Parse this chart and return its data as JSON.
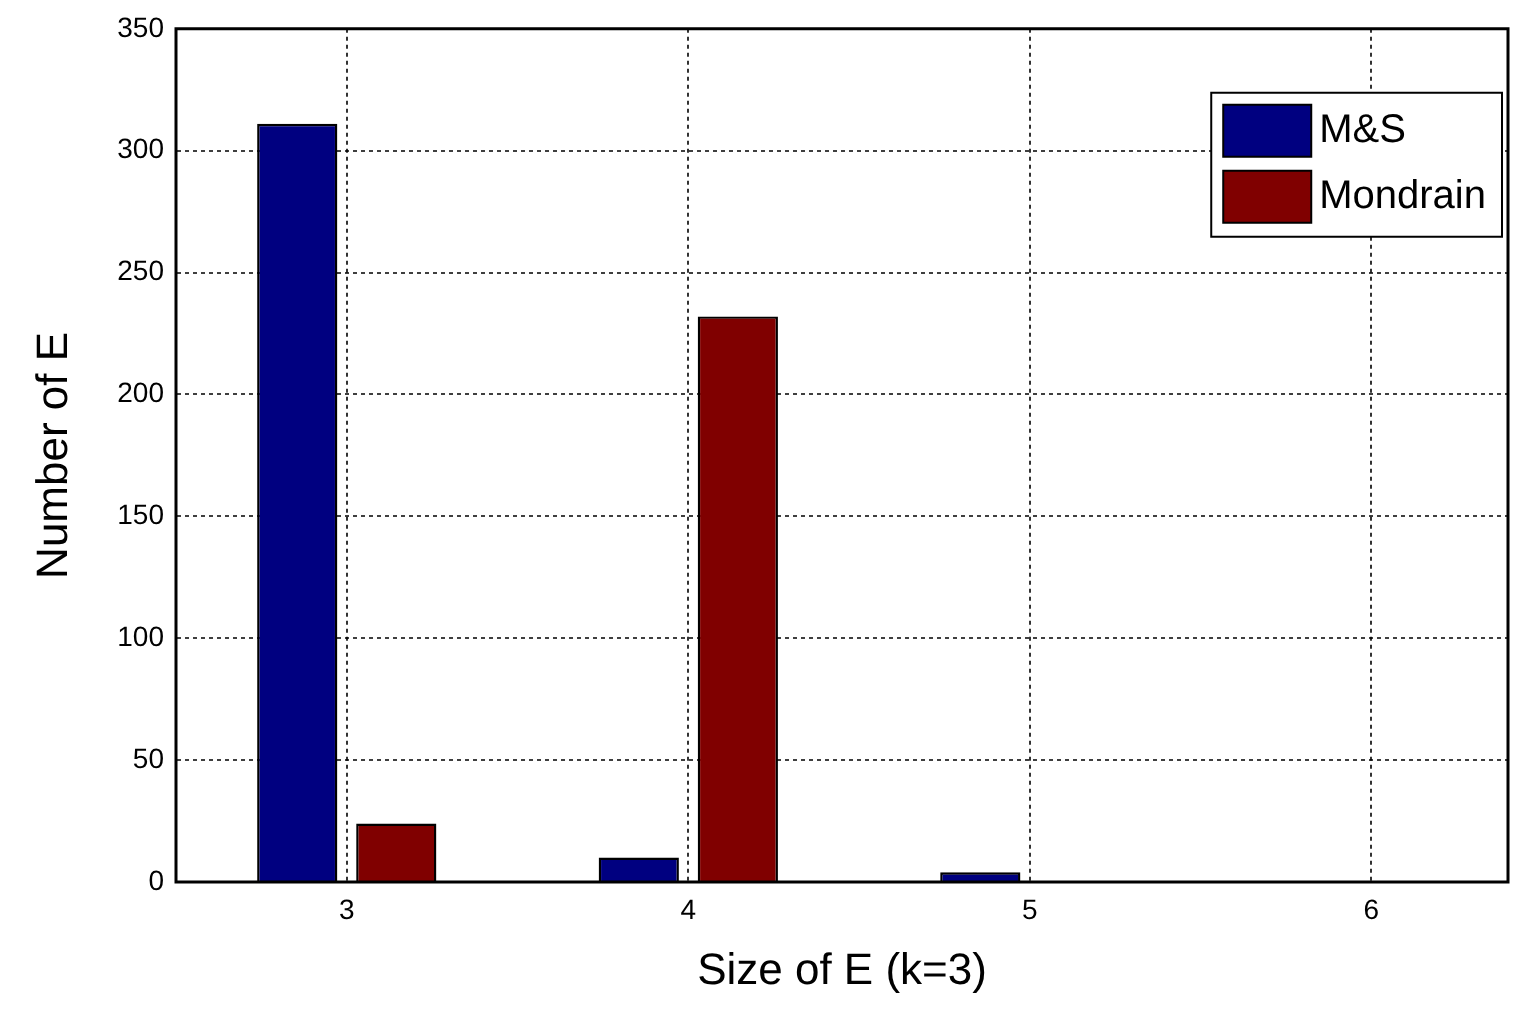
{
  "chart_data": {
    "type": "bar",
    "xlabel": "Size of E (k=3)",
    "ylabel": "Number of E",
    "x": [
      3,
      4,
      5,
      6
    ],
    "xlim": [
      2.5,
      6.4
    ],
    "xticks": [
      3,
      4,
      5,
      6
    ],
    "ylim": [
      0,
      350
    ],
    "yticks": [
      0,
      50,
      100,
      150,
      200,
      250,
      300,
      350
    ],
    "grid": true,
    "legend": "top right",
    "series": [
      {
        "name": "M&S",
        "color": "#000080",
        "values": [
          311,
          10,
          4,
          0
        ]
      },
      {
        "name": "Mondrain",
        "color": "#800000",
        "values": [
          24,
          232,
          0,
          0
        ]
      }
    ]
  }
}
